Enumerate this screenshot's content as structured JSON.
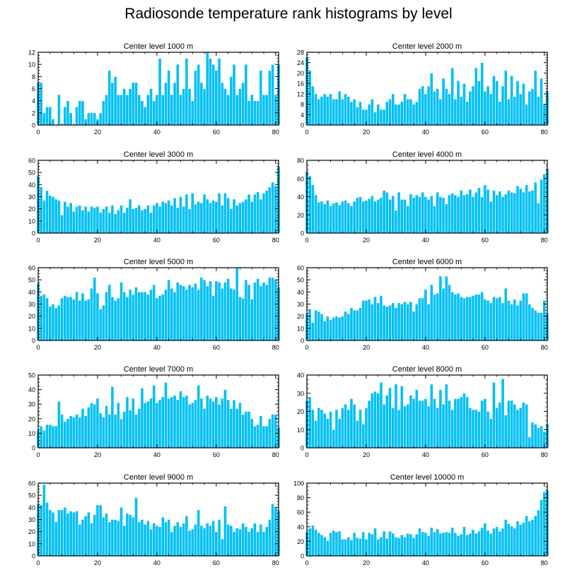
{
  "figure": {
    "title": "Radiosonde temperature rank histograms by level"
  },
  "style": {
    "bar_color": "#00C0F5",
    "bar_edge": "#ffffff",
    "axis_color": "#000000"
  },
  "chart_data": [
    {
      "type": "bar",
      "title": "Center level 1000 m",
      "xlabel": "",
      "ylabel": "",
      "xlim": [
        0,
        81
      ],
      "ylim": [
        0,
        12
      ],
      "xticks": [
        0,
        20,
        40,
        60,
        80
      ],
      "yticks": [
        0,
        2,
        4,
        6,
        8,
        10,
        12
      ],
      "values": [
        7,
        7,
        2,
        3,
        3,
        1,
        0,
        5,
        0,
        3,
        4,
        2,
        0,
        3,
        4,
        4,
        1,
        2,
        2,
        2,
        1,
        2,
        4,
        5,
        9,
        7,
        8,
        5,
        5,
        6,
        5,
        6,
        7,
        7,
        5,
        4,
        3,
        5,
        6,
        4,
        5,
        11,
        5,
        7,
        9,
        5,
        7,
        10,
        5,
        6,
        11,
        6,
        4,
        9,
        10,
        7,
        6,
        12,
        11,
        10,
        9,
        11,
        7,
        6,
        5,
        8,
        10,
        5,
        6,
        7,
        10,
        4,
        5,
        4,
        4,
        9,
        5,
        5,
        9,
        10,
        5,
        10
      ]
    },
    {
      "type": "bar",
      "title": "Center level 2000 m",
      "xlabel": "",
      "ylabel": "",
      "xlim": [
        0,
        81
      ],
      "ylim": [
        0,
        28
      ],
      "xticks": [
        0,
        20,
        40,
        60,
        80
      ],
      "yticks": [
        0,
        4,
        8,
        12,
        16,
        20,
        24,
        28
      ],
      "values": [
        26,
        21,
        15,
        12,
        10,
        11,
        12,
        11,
        12,
        10,
        10,
        13,
        10,
        12,
        11,
        9,
        10,
        7,
        9,
        6,
        6,
        8,
        10,
        5,
        8,
        6,
        6,
        9,
        10,
        12,
        8,
        8,
        9,
        12,
        10,
        10,
        8,
        9,
        14,
        15,
        12,
        15,
        20,
        13,
        14,
        10,
        18,
        14,
        12,
        22,
        10,
        17,
        11,
        16,
        9,
        13,
        15,
        22,
        17,
        24,
        13,
        15,
        12,
        19,
        17,
        9,
        15,
        21,
        10,
        19,
        11,
        17,
        12,
        16,
        8,
        13,
        14,
        21,
        11,
        18,
        8,
        13
      ]
    },
    {
      "type": "bar",
      "title": "Center level 3000 m",
      "xlabel": "",
      "ylabel": "",
      "xlim": [
        0,
        81
      ],
      "ylim": [
        0,
        60
      ],
      "xticks": [
        0,
        20,
        40,
        60,
        80
      ],
      "yticks": [
        0,
        10,
        20,
        30,
        40,
        50,
        60
      ],
      "values": [
        47,
        38,
        27,
        35,
        31,
        30,
        28,
        27,
        15,
        26,
        22,
        25,
        18,
        22,
        23,
        19,
        22,
        18,
        22,
        21,
        22,
        17,
        20,
        22,
        17,
        23,
        16,
        19,
        23,
        17,
        21,
        28,
        20,
        21,
        23,
        19,
        20,
        23,
        17,
        23,
        25,
        22,
        26,
        25,
        27,
        23,
        29,
        21,
        30,
        22,
        32,
        20,
        33,
        24,
        26,
        25,
        32,
        28,
        25,
        27,
        26,
        33,
        23,
        33,
        29,
        20,
        28,
        23,
        25,
        26,
        28,
        32,
        26,
        32,
        34,
        28,
        33,
        35,
        38,
        42,
        39,
        55
      ]
    },
    {
      "type": "bar",
      "title": "Center level 4000 m",
      "xlabel": "",
      "ylabel": "",
      "xlim": [
        0,
        81
      ],
      "ylim": [
        0,
        80
      ],
      "xticks": [
        0,
        20,
        40,
        60,
        80
      ],
      "yticks": [
        0,
        20,
        40,
        60,
        80
      ],
      "values": [
        68,
        63,
        53,
        42,
        34,
        35,
        32,
        36,
        30,
        33,
        34,
        31,
        35,
        36,
        33,
        30,
        35,
        39,
        40,
        35,
        36,
        38,
        41,
        35,
        37,
        39,
        47,
        45,
        37,
        41,
        25,
        45,
        37,
        37,
        30,
        43,
        39,
        42,
        40,
        45,
        40,
        37,
        41,
        30,
        45,
        40,
        39,
        32,
        42,
        44,
        42,
        40,
        47,
        42,
        43,
        48,
        40,
        45,
        50,
        40,
        53,
        48,
        35,
        47,
        42,
        46,
        40,
        43,
        47,
        45,
        44,
        52,
        49,
        45,
        53,
        46,
        47,
        56,
        33,
        59,
        65,
        71
      ]
    },
    {
      "type": "bar",
      "title": "Center level 5000 m",
      "xlabel": "",
      "ylabel": "",
      "xlim": [
        0,
        81
      ],
      "ylim": [
        0,
        60
      ],
      "xticks": [
        0,
        20,
        40,
        60,
        80
      ],
      "yticks": [
        0,
        10,
        20,
        30,
        40,
        50,
        60
      ],
      "values": [
        47,
        37,
        38,
        35,
        28,
        30,
        27,
        29,
        35,
        37,
        36,
        36,
        34,
        40,
        33,
        39,
        33,
        34,
        43,
        52,
        39,
        26,
        29,
        40,
        46,
        36,
        33,
        35,
        48,
        40,
        36,
        42,
        38,
        44,
        40,
        40,
        40,
        38,
        42,
        46,
        35,
        37,
        38,
        42,
        50,
        43,
        40,
        48,
        46,
        45,
        42,
        46,
        44,
        47,
        42,
        52,
        50,
        45,
        49,
        37,
        49,
        48,
        43,
        48,
        51,
        43,
        42,
        60,
        36,
        35,
        50,
        46,
        34,
        48,
        51,
        45,
        48,
        46,
        52,
        52,
        50,
        44
      ]
    },
    {
      "type": "bar",
      "title": "Center level 6000 m",
      "xlabel": "",
      "ylabel": "",
      "xlim": [
        0,
        81
      ],
      "ylim": [
        0,
        60
      ],
      "xticks": [
        0,
        20,
        40,
        60,
        80
      ],
      "yticks": [
        0,
        10,
        20,
        30,
        40,
        50,
        60
      ],
      "values": [
        22,
        26,
        15,
        25,
        24,
        22,
        16,
        20,
        17,
        19,
        20,
        19,
        20,
        24,
        22,
        27,
        25,
        25,
        27,
        33,
        33,
        34,
        30,
        36,
        31,
        37,
        29,
        28,
        29,
        31,
        27,
        31,
        30,
        32,
        30,
        32,
        24,
        30,
        35,
        35,
        42,
        30,
        46,
        38,
        39,
        53,
        43,
        53,
        46,
        40,
        38,
        39,
        36,
        35,
        36,
        36,
        37,
        38,
        38,
        40,
        34,
        33,
        31,
        36,
        35,
        36,
        31,
        43,
        33,
        30,
        34,
        29,
        33,
        39,
        39,
        30,
        27,
        25,
        23,
        23,
        33,
        22
      ]
    },
    {
      "type": "bar",
      "title": "Center level 7000 m",
      "xlabel": "",
      "ylabel": "",
      "xlim": [
        0,
        81
      ],
      "ylim": [
        0,
        50
      ],
      "xticks": [
        0,
        20,
        40,
        60,
        80
      ],
      "yticks": [
        0,
        10,
        20,
        30,
        40,
        50
      ],
      "values": [
        12,
        15,
        12,
        16,
        16,
        15,
        15,
        32,
        23,
        18,
        20,
        22,
        21,
        23,
        21,
        27,
        22,
        28,
        31,
        30,
        34,
        24,
        21,
        29,
        23,
        42,
        23,
        31,
        20,
        25,
        35,
        26,
        34,
        23,
        27,
        41,
        31,
        32,
        34,
        43,
        31,
        33,
        35,
        45,
        34,
        35,
        36,
        33,
        39,
        35,
        36,
        30,
        31,
        33,
        43,
        34,
        27,
        36,
        34,
        32,
        35,
        30,
        34,
        40,
        33,
        27,
        33,
        27,
        31,
        23,
        25,
        25,
        20,
        15,
        16,
        22,
        15,
        15,
        20,
        23,
        23,
        14
      ]
    },
    {
      "type": "bar",
      "title": "Center level 8000 m",
      "xlabel": "",
      "ylabel": "",
      "xlim": [
        0,
        81
      ],
      "ylim": [
        0,
        40
      ],
      "xticks": [
        0,
        20,
        40,
        60,
        80
      ],
      "yticks": [
        0,
        10,
        20,
        30,
        40
      ],
      "values": [
        26,
        28,
        21,
        15,
        22,
        21,
        19,
        16,
        20,
        10,
        21,
        16,
        22,
        24,
        21,
        27,
        24,
        15,
        21,
        13,
        22,
        26,
        30,
        31,
        30,
        36,
        24,
        29,
        33,
        22,
        35,
        21,
        34,
        23,
        24,
        29,
        27,
        32,
        26,
        26,
        27,
        23,
        35,
        27,
        22,
        32,
        24,
        35,
        26,
        21,
        27,
        27,
        28,
        30,
        28,
        22,
        21,
        21,
        20,
        26,
        27,
        20,
        16,
        36,
        22,
        25,
        38,
        18,
        26,
        26,
        24,
        21,
        22,
        25,
        24,
        6,
        14,
        13,
        11,
        12,
        9,
        13
      ]
    },
    {
      "type": "bar",
      "title": "Center level 9000 m",
      "xlabel": "",
      "ylabel": "",
      "xlim": [
        0,
        81
      ],
      "ylim": [
        0,
        60
      ],
      "xticks": [
        0,
        20,
        40,
        60,
        80
      ],
      "yticks": [
        0,
        10,
        20,
        30,
        40,
        50,
        60
      ],
      "values": [
        43,
        42,
        59,
        44,
        38,
        36,
        28,
        38,
        38,
        40,
        35,
        37,
        36,
        37,
        26,
        30,
        33,
        36,
        27,
        34,
        42,
        42,
        32,
        35,
        28,
        30,
        30,
        29,
        40,
        25,
        35,
        34,
        32,
        48,
        28,
        30,
        26,
        29,
        22,
        27,
        25,
        24,
        32,
        28,
        30,
        20,
        25,
        28,
        24,
        27,
        33,
        21,
        22,
        26,
        38,
        25,
        23,
        27,
        25,
        29,
        20,
        30,
        14,
        41,
        26,
        25,
        20,
        23,
        22,
        27,
        24,
        20,
        23,
        27,
        20,
        26,
        20,
        24,
        30,
        43,
        40,
        37
      ]
    },
    {
      "type": "bar",
      "title": "Center level 10000 m",
      "xlabel": "",
      "ylabel": "",
      "xlim": [
        0,
        81
      ],
      "ylim": [
        0,
        100
      ],
      "xticks": [
        0,
        20,
        40,
        60,
        80
      ],
      "yticks": [
        0,
        20,
        40,
        60,
        80,
        100
      ],
      "values": [
        33,
        38,
        42,
        36,
        32,
        29,
        26,
        21,
        32,
        35,
        33,
        34,
        23,
        23,
        26,
        22,
        32,
        25,
        24,
        33,
        23,
        32,
        30,
        38,
        23,
        26,
        34,
        24,
        34,
        31,
        26,
        25,
        29,
        26,
        31,
        30,
        25,
        30,
        38,
        33,
        32,
        28,
        39,
        33,
        37,
        31,
        32,
        33,
        32,
        39,
        32,
        28,
        30,
        40,
        29,
        31,
        36,
        31,
        34,
        39,
        45,
        35,
        31,
        38,
        40,
        34,
        38,
        50,
        44,
        41,
        38,
        48,
        43,
        46,
        55,
        48,
        50,
        55,
        63,
        77,
        88,
        90
      ]
    }
  ]
}
